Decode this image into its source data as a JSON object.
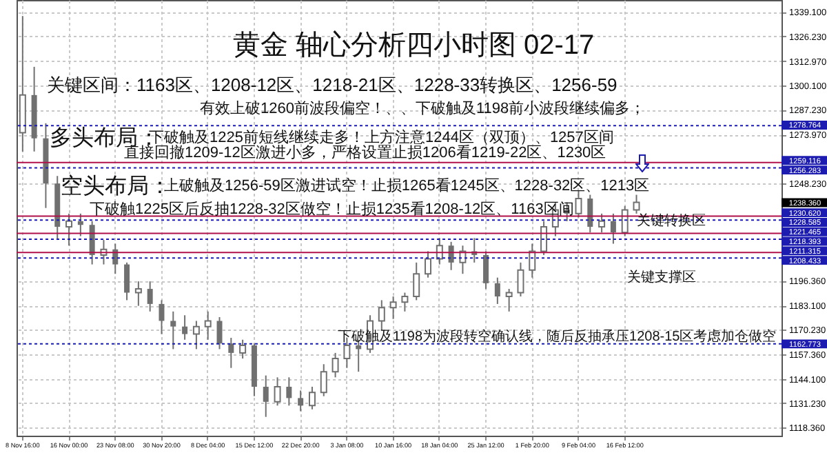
{
  "chart_data": {
    "type": "candlestick",
    "title": "黄金 轴心分析四小时图 02-17",
    "annotations": [
      "关键区间：1163区、1208-12区、1218-21区、1228-33转换区、1256-59",
      "有效上破1260前波段偏空！、、下破触及1198前小波段继续偏多；",
      "多头布局：",
      "下破触及1225前短线继续走多！上方注意1244区（双顶）、1257区间",
      "直接回撤1209-12区激进小多，严格设置止损1206看1219-22区、1230区",
      "空头布局：",
      "上破触及1256-59区激进试空！止损1265看1245区、1228-32区、1213区",
      "下破触1225区后反抽1228-32区做空！止损1235看1208-12区、1163区间",
      "关键转换区",
      "关键支撑区",
      "下破触及1198为波段转空确认线，随后反抽承压1208-15区考虑加仓做空",
      "1238.360"
    ],
    "categories": [
      "8 Nov 16:00",
      null,
      null,
      null,
      "16 Nov 00:00",
      null,
      null,
      null,
      "23 Nov 08:00",
      null,
      null,
      null,
      "30 Nov 20:00",
      null,
      null,
      null,
      "8 Dec 04:00",
      null,
      null,
      null,
      "15 Dec 12:00",
      null,
      null,
      null,
      "22 Dec 20:00",
      null,
      null,
      null,
      "3 Jan 08:00",
      null,
      null,
      null,
      "10 Jan 16:00",
      null,
      null,
      null,
      "18 Jan 04:00",
      null,
      null,
      null,
      "25 Jan 12:00",
      null,
      null,
      null,
      "1 Feb 20:00",
      null,
      null,
      null,
      "9 Feb 04:00",
      null,
      null,
      null,
      "16 Feb 12:00",
      null,
      null,
      null,
      null,
      null,
      null,
      null,
      null,
      null,
      null,
      null,
      null,
      null
    ],
    "ohlc": [
      [
        1275,
        1337,
        1265,
        1295
      ],
      [
        1295,
        1310,
        1265,
        1272
      ],
      [
        1272,
        1280,
        1235,
        1248
      ],
      [
        1248,
        1252,
        1218,
        1225
      ],
      [
        1225,
        1232,
        1215,
        1228
      ],
      [
        1228,
        1232,
        1220,
        1226
      ],
      [
        1226,
        1228,
        1205,
        1210
      ],
      [
        1210,
        1218,
        1205,
        1213
      ],
      [
        1213,
        1216,
        1200,
        1205
      ],
      [
        1205,
        1206,
        1186,
        1190
      ],
      [
        1190,
        1196,
        1183,
        1192
      ],
      [
        1192,
        1196,
        1180,
        1184
      ],
      [
        1184,
        1186,
        1168,
        1175
      ],
      [
        1175,
        1180,
        1160,
        1172
      ],
      [
        1172,
        1178,
        1165,
        1168
      ],
      [
        1168,
        1175,
        1160,
        1172
      ],
      [
        1172,
        1180,
        1165,
        1175
      ],
      [
        1175,
        1177,
        1160,
        1163
      ],
      [
        1163,
        1166,
        1150,
        1158
      ],
      [
        1158,
        1165,
        1155,
        1162
      ],
      [
        1162,
        1163,
        1135,
        1140
      ],
      [
        1140,
        1146,
        1124,
        1132
      ],
      [
        1132,
        1145,
        1130,
        1140
      ],
      [
        1140,
        1145,
        1130,
        1134
      ],
      [
        1134,
        1138,
        1127,
        1130
      ],
      [
        1130,
        1140,
        1128,
        1137
      ],
      [
        1137,
        1152,
        1135,
        1148
      ],
      [
        1148,
        1158,
        1145,
        1155
      ],
      [
        1155,
        1166,
        1150,
        1162
      ],
      [
        1162,
        1165,
        1148,
        1160
      ],
      [
        1160,
        1178,
        1158,
        1175
      ],
      [
        1175,
        1186,
        1170,
        1182
      ],
      [
        1182,
        1188,
        1176,
        1185
      ],
      [
        1185,
        1190,
        1180,
        1188
      ],
      [
        1188,
        1206,
        1186,
        1200
      ],
      [
        1200,
        1212,
        1198,
        1208
      ],
      [
        1208,
        1219,
        1205,
        1215
      ],
      [
        1215,
        1217,
        1202,
        1206
      ],
      [
        1206,
        1215,
        1200,
        1212
      ],
      [
        1212,
        1219,
        1206,
        1210
      ],
      [
        1210,
        1212,
        1192,
        1195
      ],
      [
        1195,
        1198,
        1184,
        1188
      ],
      [
        1188,
        1192,
        1180,
        1190
      ],
      [
        1190,
        1206,
        1188,
        1202
      ],
      [
        1202,
        1216,
        1198,
        1212
      ],
      [
        1212,
        1228,
        1210,
        1225
      ],
      [
        1225,
        1238,
        1220,
        1234
      ],
      [
        1234,
        1238,
        1228,
        1232
      ],
      [
        1232,
        1244,
        1230,
        1240
      ],
      [
        1240,
        1242,
        1222,
        1225
      ],
      [
        1225,
        1232,
        1222,
        1228
      ],
      [
        1228,
        1232,
        1216,
        1222
      ],
      [
        1222,
        1236,
        1220,
        1234
      ],
      [
        1234,
        1242,
        1232,
        1238
      ],
      null,
      null,
      null,
      null,
      null,
      null,
      null,
      null,
      null,
      null,
      null,
      null
    ],
    "color": "#707070",
    "ylim": [
      1114,
      1345.5
    ],
    "yticks": [
      {
        "value": 1339.1,
        "label": "1339.100"
      },
      {
        "value": 1326.23,
        "label": "1326.230"
      },
      {
        "value": 1312.97,
        "label": "1312.970"
      },
      {
        "value": 1300.1,
        "label": "1300.100"
      },
      {
        "value": 1287.23,
        "label": "1287.230"
      },
      {
        "value": 1273.97,
        "label": "1273.970"
      },
      {
        "value": 1248.23,
        "label": "1248.230"
      },
      {
        "value": 1196.36,
        "label": "1196.360"
      },
      {
        "value": 1183.1,
        "label": "1183.100"
      },
      {
        "value": 1170.23,
        "label": "1170.230"
      },
      {
        "value": 1157.36,
        "label": "1157.360"
      },
      {
        "value": 1144.1,
        "label": "1144.100"
      },
      {
        "value": 1131.23,
        "label": "1131.230"
      },
      {
        "value": 1118.36,
        "label": "1118.360"
      }
    ],
    "grid": true,
    "ref_lines": [
      {
        "axis": "y",
        "value": 1278.764,
        "label": "1278.764",
        "color": "#1c1cb0",
        "line_style": "dotted"
      },
      {
        "axis": "y",
        "value": 1259.116,
        "label": "1259.116",
        "color": "#b0104a",
        "line_style": "solid"
      },
      {
        "axis": "y",
        "value": 1256.283,
        "label": "1256.283",
        "color": "#1c1cb0",
        "line_style": "dotted"
      },
      {
        "axis": "y",
        "value": 1230.62,
        "label": "1230.620",
        "color": "#b0104a",
        "line_style": "solid"
      },
      {
        "axis": "y",
        "value": 1228.585,
        "label": "1228.585",
        "color": "#1c1cb0",
        "line_style": "dotted"
      },
      {
        "axis": "y",
        "value": 1221.465,
        "label": "1221.465",
        "color": "#b0104a",
        "line_style": "solid"
      },
      {
        "axis": "y",
        "value": 1218.393,
        "label": "1218.393",
        "color": "#1c1cb0",
        "line_style": "dotted"
      },
      {
        "axis": "y",
        "value": 1211.315,
        "label": "1211.315",
        "color": "#b0104a",
        "line_style": "solid"
      },
      {
        "axis": "y",
        "value": 1208.433,
        "label": "1208.433",
        "color": "#1c1cb0",
        "line_style": "dotted"
      },
      {
        "axis": "y",
        "value": 1162.773,
        "label": "1162.773",
        "color": "#1c1cb0",
        "line_style": "dotted"
      }
    ]
  }
}
